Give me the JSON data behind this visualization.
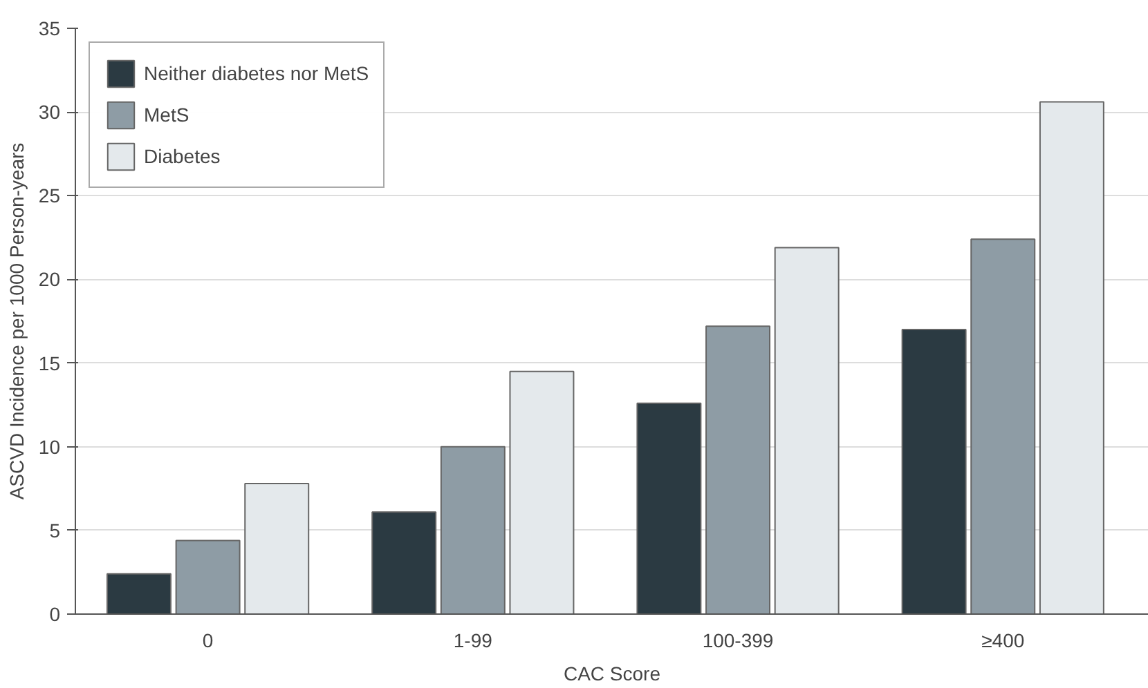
{
  "chart_data": {
    "type": "bar",
    "xlabel": "CAC Score",
    "ylabel": "ASCVD Incidence per 1000 Person-years",
    "categories": [
      "0",
      "1-99",
      "100-399",
      "≥400"
    ],
    "series": [
      {
        "name": "Neither diabetes nor MetS",
        "color": "#2b3a42",
        "values": [
          2.4,
          6.1,
          12.6,
          17.0
        ]
      },
      {
        "name": "MetS",
        "color": "#8e9ca5",
        "values": [
          4.4,
          10.0,
          17.2,
          22.4
        ]
      },
      {
        "name": "Diabetes",
        "color": "#e4e9ec",
        "values": [
          7.8,
          14.5,
          21.9,
          30.6
        ]
      }
    ],
    "ylim": [
      0,
      35
    ],
    "yticks": [
      0,
      5,
      10,
      15,
      20,
      25,
      30,
      35
    ],
    "grid": "y",
    "legend": "top left"
  }
}
